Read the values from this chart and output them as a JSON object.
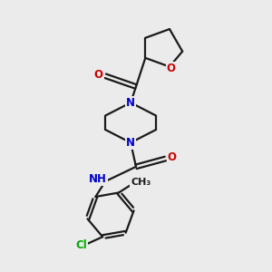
{
  "bg_color": "#ebebeb",
  "bond_color": "#1a1a1a",
  "N_color": "#0000cc",
  "O_color": "#cc0000",
  "Cl_color": "#00aa00",
  "line_width": 1.6,
  "font_size": 8.5,
  "fig_w": 3.0,
  "fig_h": 3.0,
  "dpi": 100,
  "xlim": [
    0,
    10
  ],
  "ylim": [
    0,
    10
  ]
}
